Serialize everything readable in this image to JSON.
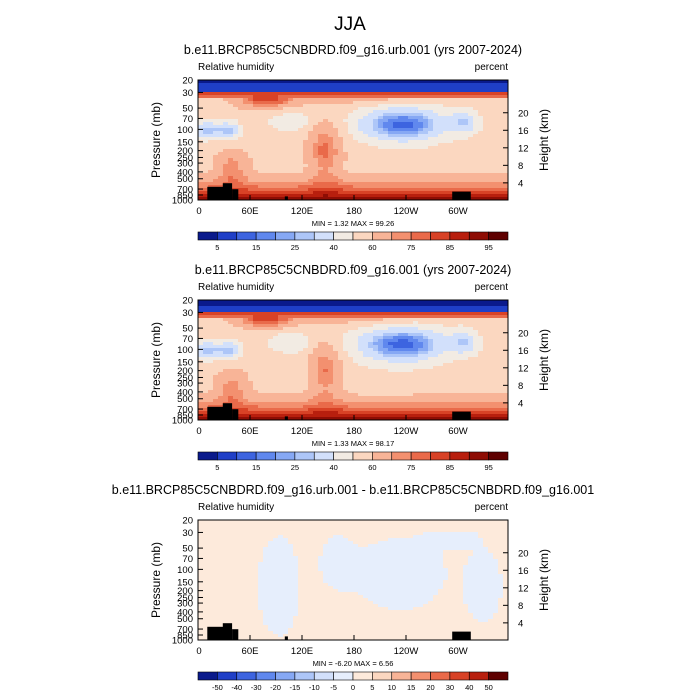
{
  "figure_title": "JJA",
  "chart_data": [
    {
      "type": "heatmap",
      "title": "b.e11.BRCP85C5CNBDRD.f09_g16.urb.001 (yrs 2007-2024)",
      "left_label": "Relative humidity",
      "right_label": "percent",
      "ylabel": "Pressure (mb)",
      "y2label": "Height (km)",
      "x_ticks": [
        "0",
        "60E",
        "120E",
        "180",
        "120W",
        "60W"
      ],
      "y_ticks": [
        "1000",
        "850",
        "700",
        "500",
        "400",
        "300",
        "250",
        "200",
        "150",
        "100",
        "70",
        "50",
        "30",
        "20"
      ],
      "y2_ticks": [
        "4",
        "8",
        "12",
        "16",
        "20"
      ],
      "stats": "MIN =   1.32  MAX =  99.26",
      "colorbar_labels": [
        "5",
        "15",
        "25",
        "40",
        "60",
        "75",
        "85",
        "95"
      ],
      "colorbar_levels": [
        5,
        10,
        15,
        20,
        25,
        30,
        40,
        50,
        60,
        70,
        75,
        80,
        85,
        90,
        95
      ],
      "min": 1.32,
      "max": 99.26
    },
    {
      "type": "heatmap",
      "title": "b.e11.BRCP85C5CNBDRD.f09_g16.001 (yrs 2007-2024)",
      "left_label": "Relative humidity",
      "right_label": "percent",
      "ylabel": "Pressure (mb)",
      "y2label": "Height (km)",
      "x_ticks": [
        "0",
        "60E",
        "120E",
        "180",
        "120W",
        "60W"
      ],
      "y_ticks": [
        "1000",
        "850",
        "700",
        "500",
        "400",
        "300",
        "250",
        "200",
        "150",
        "100",
        "70",
        "50",
        "30",
        "20"
      ],
      "y2_ticks": [
        "4",
        "8",
        "12",
        "16",
        "20"
      ],
      "stats": "MIN =   1.33  MAX =  98.17",
      "colorbar_labels": [
        "5",
        "15",
        "25",
        "40",
        "60",
        "75",
        "85",
        "95"
      ],
      "colorbar_levels": [
        5,
        10,
        15,
        20,
        25,
        30,
        40,
        50,
        60,
        70,
        75,
        80,
        85,
        90,
        95
      ],
      "min": 1.33,
      "max": 98.17
    },
    {
      "type": "heatmap",
      "title": "b.e11.BRCP85C5CNBDRD.f09_g16.urb.001 - b.e11.BRCP85C5CNBDRD.f09_g16.001",
      "left_label": "Relative humidity",
      "right_label": "percent",
      "ylabel": "Pressure (mb)",
      "y2label": "Height (km)",
      "x_ticks": [
        "0",
        "60E",
        "120E",
        "180",
        "120W",
        "60W"
      ],
      "y_ticks": [
        "1000",
        "850",
        "700",
        "500",
        "400",
        "300",
        "250",
        "200",
        "150",
        "100",
        "70",
        "50",
        "30",
        "20"
      ],
      "y2_ticks": [
        "4",
        "8",
        "12",
        "16",
        "20"
      ],
      "stats": "MIN =  -6.20  MAX =   6.56",
      "colorbar_labels": [
        "-50",
        "-40",
        "-30",
        "-20",
        "-15",
        "-10",
        "-5",
        "0",
        "5",
        "10",
        "15",
        "20",
        "30",
        "40",
        "50"
      ],
      "colorbar_levels": [
        -50,
        -40,
        -30,
        -20,
        -15,
        -10,
        -5,
        0,
        5,
        10,
        15,
        20,
        30,
        40,
        50
      ],
      "min": -6.2,
      "max": 6.56
    }
  ]
}
